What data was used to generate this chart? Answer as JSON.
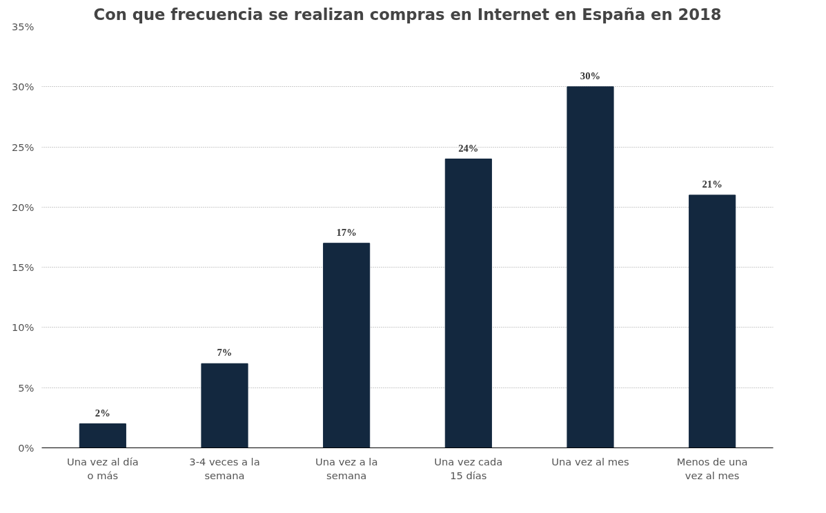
{
  "chart_data": {
    "type": "bar",
    "title": "Con que frecuencia se realizan compras en Internet en España en 2018",
    "categories": [
      "Una vez al día o más",
      "3-4 veces a la semana",
      "Una vez a la semana",
      "Una vez cada 15 días",
      "Una vez al mes",
      "Menos de una vez al mes"
    ],
    "values": [
      2,
      7,
      17,
      24,
      30,
      21
    ],
    "value_labels": [
      "2%",
      "7%",
      "17%",
      "24%",
      "30%",
      "21%"
    ],
    "color": "#13283f",
    "ylim": [
      0,
      35
    ],
    "yticks": [
      {
        "value": 0,
        "label": "0%"
      },
      {
        "value": 5,
        "label": "5%"
      },
      {
        "value": 10,
        "label": "10%"
      },
      {
        "value": 15,
        "label": "15%"
      },
      {
        "value": 20,
        "label": "20%"
      },
      {
        "value": 25,
        "label": "25%"
      },
      {
        "value": 30,
        "label": "30%"
      },
      {
        "value": 35,
        "label": "35%"
      }
    ],
    "grid": "y"
  }
}
